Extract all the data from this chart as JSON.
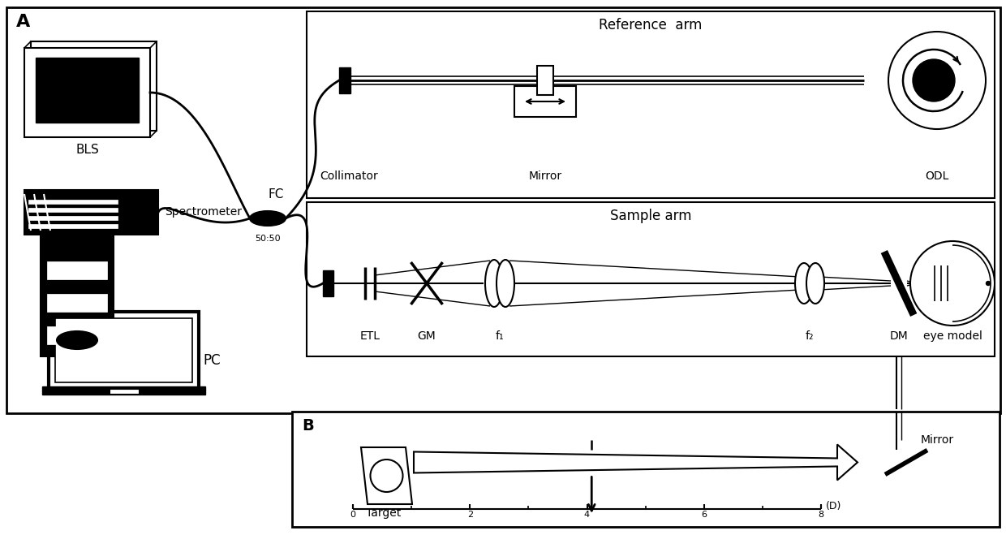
{
  "bg_color": "#ffffff",
  "line_color": "#000000",
  "panel_A_label": "A",
  "panel_B_label": "B",
  "ref_arm_label": "Reference  arm",
  "sample_arm_label": "Sample arm",
  "collimator_label": "Collimator",
  "mirror_label_ref": "Mirror",
  "odl_label": "ODL",
  "fc_label": "FC",
  "fc_sublabel": "50:50",
  "bls_label": "BLS",
  "spectrometer_label": "Spectrometer",
  "pc_label": "PC",
  "etl_label": "ETL",
  "gm_label": "GM",
  "f1_label": "f₁",
  "f2_label": "f₂",
  "dm_label": "DM",
  "eye_label": "eye model",
  "target_label": "Target",
  "mirror_label_B": "Mirror",
  "diopter_label": "(D)",
  "scale_ticks": [
    0,
    2,
    4,
    6,
    8
  ]
}
